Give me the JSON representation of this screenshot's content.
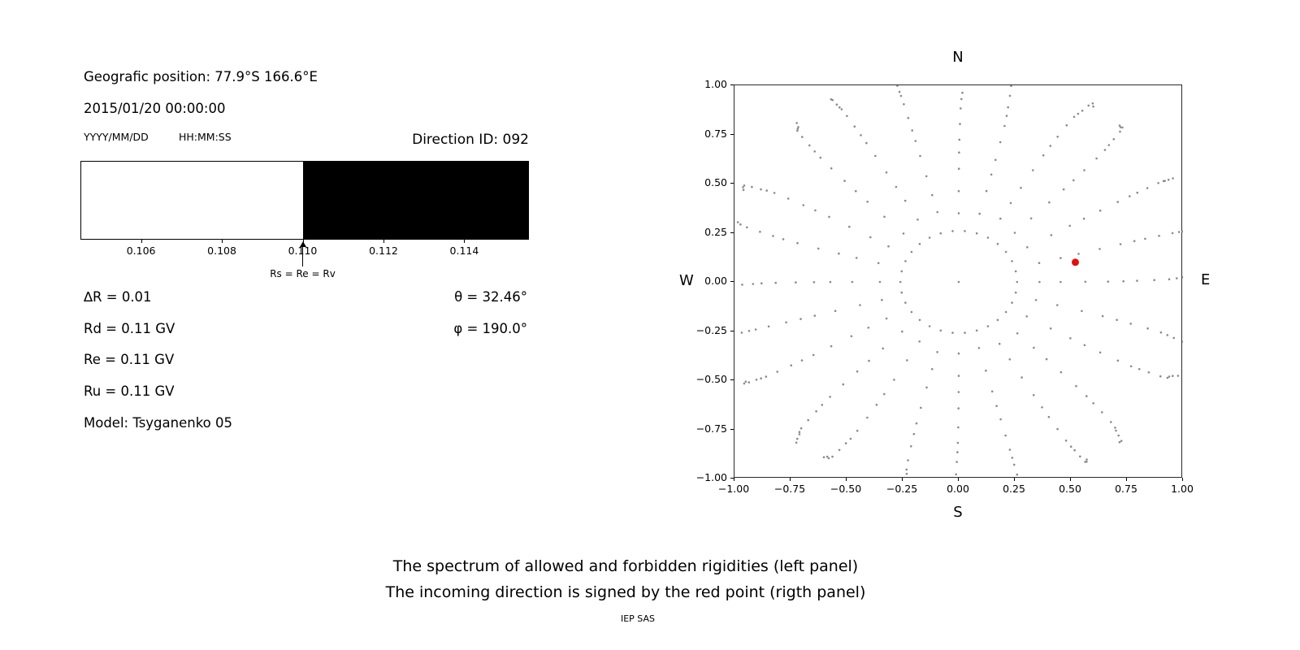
{
  "left_panel": {
    "position": "Geografic position: 77.9°S 166.6°E",
    "datetime": "2015/01/20 00:00:00",
    "date_format": "YYYY/MM/DD",
    "time_format": "HH:MM:SS",
    "direction_id": "Direction ID: 092",
    "params": [
      "∆R = 0.01",
      "Rd = 0.11 GV",
      "Re = 0.11 GV",
      "Ru = 0.11 GV",
      "Model: Tsyganenko 05"
    ],
    "theta": "θ = 32.46°",
    "phi": "φ = 190.0°"
  },
  "captions": [
    "The spectrum of allowed and forbidden rigidities (left panel)",
    "The incoming direction is signed by the red point (rigth panel)"
  ],
  "footer": "IEP SAS",
  "chart_data": [
    {
      "id": "rigidity-spectrum",
      "type": "area",
      "title": "",
      "x_range": [
        0.1045,
        0.1156
      ],
      "boundary": 0.11,
      "allowed_color": "#ffffff",
      "forbidden_color": "#000000",
      "ticks": [
        0.106,
        0.108,
        0.11,
        0.112,
        0.114
      ],
      "tick_labels": [
        "0.106",
        "0.108",
        "0.110",
        "0.112",
        "0.114"
      ],
      "arrow_x": 0.11,
      "arrow_label": "Rs = Re = Rv",
      "values": {
        "delta_R": 0.01,
        "Rd_GV": 0.11,
        "Re_GV": 0.11,
        "Ru_GV": 0.11
      }
    },
    {
      "id": "incoming-direction",
      "type": "scatter",
      "xlim": [
        -1,
        1
      ],
      "ylim": [
        -1,
        1
      ],
      "xticks": [
        -1,
        -0.75,
        -0.5,
        -0.25,
        0,
        0.25,
        0.5,
        0.75,
        1
      ],
      "xtick_labels": [
        "−1.00",
        "−0.75",
        "−0.50",
        "−0.25",
        "0.00",
        "0.25",
        "0.50",
        "0.75",
        "1.00"
      ],
      "yticks": [
        1,
        0.75,
        0.5,
        0.25,
        0,
        -0.25,
        -0.5,
        -0.75,
        -1
      ],
      "ytick_labels": [
        "1.00",
        "0.75",
        "0.50",
        "0.25",
        "0.00",
        "−0.25",
        "−0.50",
        "−0.75",
        "−1.00"
      ],
      "compass": {
        "top": "N",
        "bottom": "S",
        "left": "W",
        "right": "E"
      },
      "grid": false,
      "dot_color": "#8a8a8a",
      "red_point": {
        "x": 0.52,
        "y": 0.1,
        "color": "#dd1111"
      },
      "theta_deg": 32.46,
      "phi_deg": 190.0,
      "pattern": {
        "center_dot": true,
        "inner_ring": {
          "radius": 0.26,
          "count": 30
        },
        "spokes": {
          "count": 24,
          "start_angle_deg": 0,
          "r_start": 0.36,
          "r_end": 1.08,
          "dots_per_spoke": 14
        }
      }
    }
  ]
}
